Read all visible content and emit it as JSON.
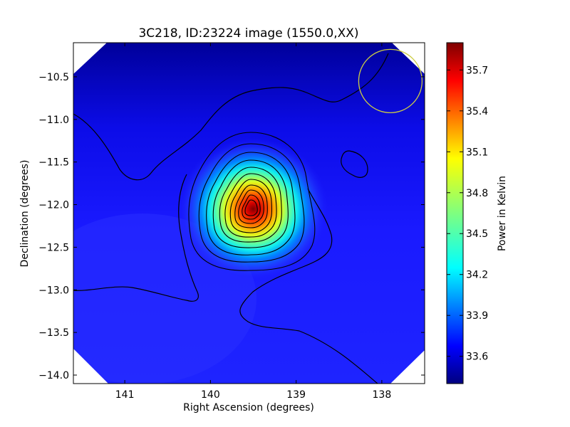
{
  "chart_data": {
    "type": "heatmap",
    "title": "3C218, ID:23224 image (1550.0,XX)",
    "xlabel": "Right Ascension (degrees)",
    "ylabel": "Declination (degrees)",
    "xlim": [
      141.6,
      137.5
    ],
    "ylim": [
      -14.1,
      -10.1
    ],
    "x_ticks": [
      141,
      140,
      139,
      138
    ],
    "x_tick_labels": [
      "141",
      "140",
      "139",
      "138"
    ],
    "y_ticks": [
      -10.5,
      -11.0,
      -11.5,
      -12.0,
      -12.5,
      -13.0,
      -13.5,
      -14.0
    ],
    "y_tick_labels": [
      "−10.5",
      "−11.0",
      "−11.5",
      "−12.0",
      "−12.5",
      "−13.0",
      "−13.5",
      "−14.0"
    ],
    "colormap": "jet",
    "colorbar": {
      "label": "Power in Kelvin",
      "range": [
        33.4,
        35.9
      ],
      "ticks": [
        33.6,
        33.9,
        34.2,
        34.5,
        34.8,
        35.1,
        35.4,
        35.7
      ],
      "tick_labels": [
        "33.6",
        "33.9",
        "34.2",
        "34.5",
        "34.8",
        "35.1",
        "35.4",
        "35.7"
      ]
    },
    "source": {
      "ra": 139.5,
      "dec": -12.05,
      "peak": 35.9
    },
    "secondary_feature": {
      "ra": 138.35,
      "dec": -11.55
    },
    "beam_circle": {
      "ra": 137.9,
      "dec": -10.55,
      "radius_deg": 0.37,
      "color": "#cccc44"
    },
    "colors": {
      "background_low": "#00008f",
      "background": "#1b1bff",
      "contour": "#000000"
    }
  }
}
